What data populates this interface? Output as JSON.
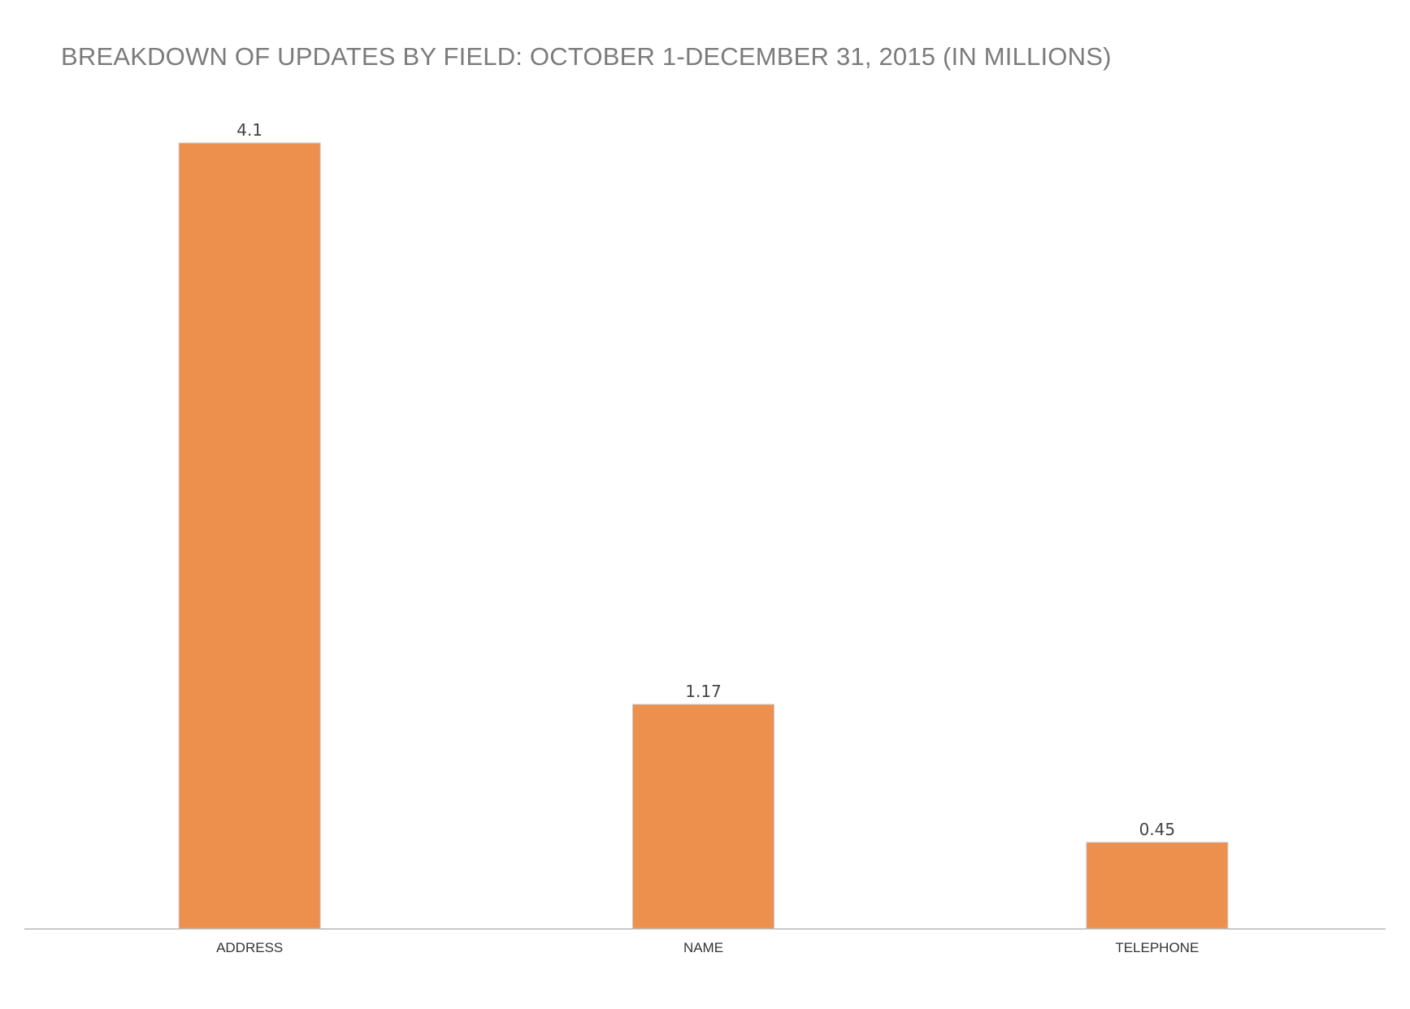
{
  "chart_data": {
    "type": "bar",
    "title": "BREAKDOWN OF UPDATES BY FIELD: OCTOBER 1-DECEMBER 31, 2015 (IN MILLIONS)",
    "xlabel": "",
    "ylabel": "",
    "categories": [
      "ADDRESS",
      "NAME",
      "TELEPHONE"
    ],
    "values": [
      4.1,
      1.17,
      0.45
    ],
    "data_labels": [
      "4.1",
      "1.17",
      "0.45"
    ],
    "ylim": [
      0,
      4.1
    ],
    "grid": false,
    "legend": "none",
    "colors": {
      "bar": "#ED8F4D",
      "title": "#7b7b7b"
    }
  }
}
